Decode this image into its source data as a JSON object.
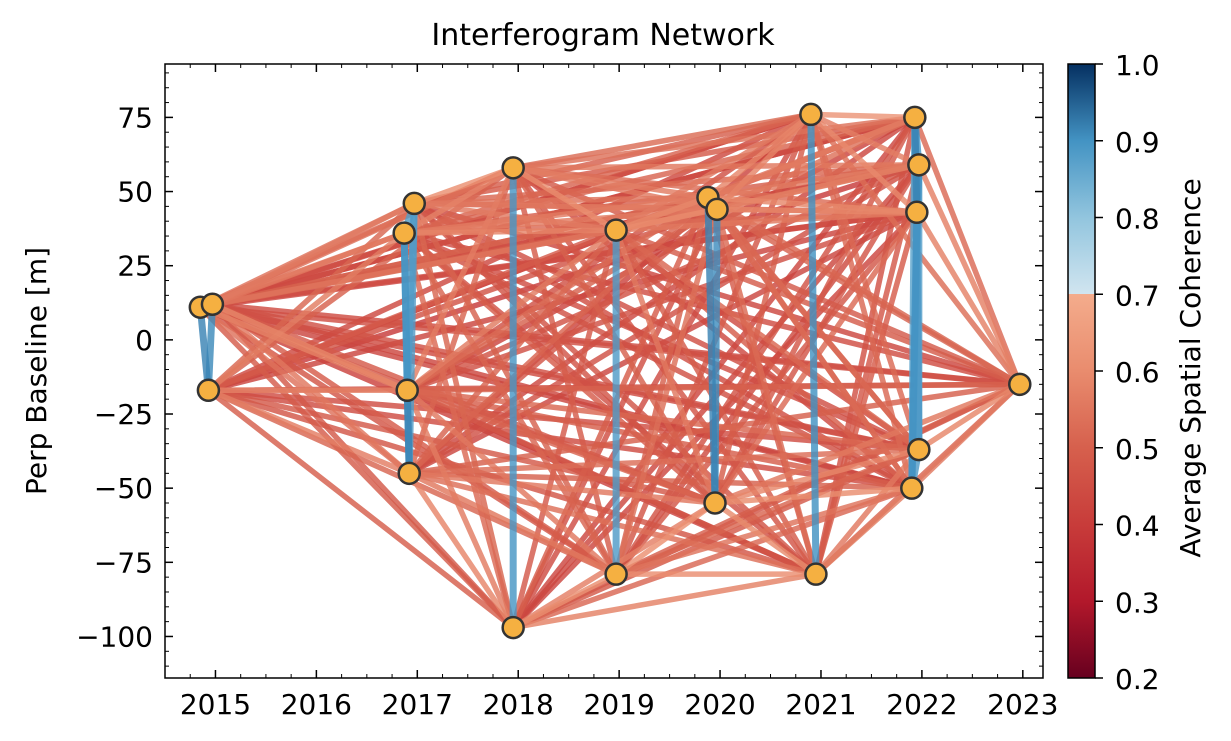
{
  "chart_data": {
    "type": "scatter",
    "title": "Interferogram Network",
    "xlabel": "",
    "ylabel": "Perp Baseline [m]",
    "xlim": [
      2014.5,
      2023.2
    ],
    "ylim": [
      -114,
      93
    ],
    "xticks": [
      2015,
      2016,
      2017,
      2018,
      2019,
      2020,
      2021,
      2022,
      2023
    ],
    "yticks": [
      -100,
      -75,
      -50,
      -25,
      0,
      25,
      50,
      75
    ],
    "ytick_labels": [
      "−100",
      "−75",
      "−50",
      "−25",
      "0",
      "25",
      "50",
      "75"
    ],
    "acquisitions": [
      {
        "date": 2014.85,
        "baseline": 11
      },
      {
        "date": 2014.97,
        "baseline": 12
      },
      {
        "date": 2014.93,
        "baseline": -17
      },
      {
        "date": 2016.87,
        "baseline": 36
      },
      {
        "date": 2016.97,
        "baseline": 46
      },
      {
        "date": 2016.9,
        "baseline": -17
      },
      {
        "date": 2016.92,
        "baseline": -45
      },
      {
        "date": 2017.95,
        "baseline": 58
      },
      {
        "date": 2017.95,
        "baseline": -97
      },
      {
        "date": 2018.97,
        "baseline": 37
      },
      {
        "date": 2018.97,
        "baseline": -79
      },
      {
        "date": 2019.88,
        "baseline": 48
      },
      {
        "date": 2019.97,
        "baseline": 44
      },
      {
        "date": 2019.95,
        "baseline": -55
      },
      {
        "date": 2020.9,
        "baseline": 76
      },
      {
        "date": 2020.95,
        "baseline": -79
      },
      {
        "date": 2021.93,
        "baseline": 75
      },
      {
        "date": 2021.97,
        "baseline": 59
      },
      {
        "date": 2021.95,
        "baseline": 43
      },
      {
        "date": 2021.97,
        "baseline": -37
      },
      {
        "date": 2021.9,
        "baseline": -50
      },
      {
        "date": 2022.97,
        "baseline": -15
      }
    ],
    "marker_color": "#f5b041",
    "marker_edge_color": "#333333",
    "colorbar": {
      "label": "Average Spatial Coherence",
      "range": [
        0.2,
        1.0
      ],
      "ticks": [
        0.2,
        0.3,
        0.4,
        0.5,
        0.6,
        0.7,
        0.8,
        0.9,
        1.0
      ],
      "tick_labels": [
        "0.2",
        "0.3",
        "0.4",
        "0.5",
        "0.6",
        "0.7",
        "0.8",
        "0.9",
        "1.0"
      ],
      "colormap": "RdBu",
      "threshold": 0.7
    }
  }
}
